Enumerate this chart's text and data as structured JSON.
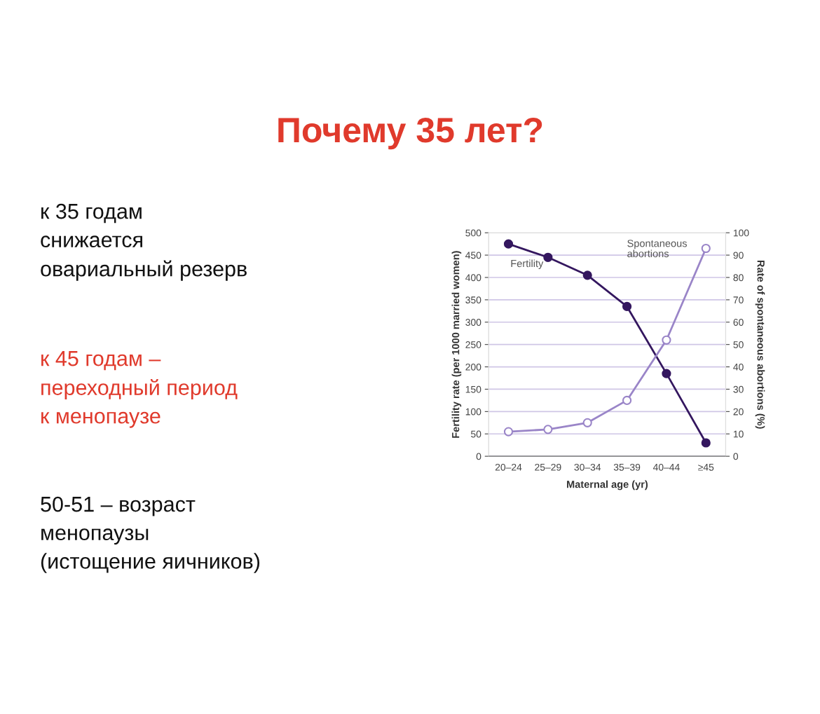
{
  "chart_data": {
    "type": "line",
    "title": "Почему 35 лет?",
    "categories": [
      "20–24",
      "25–29",
      "30–34",
      "35–39",
      "40–44",
      "≥45"
    ],
    "series": [
      {
        "name": "Fertility",
        "color": "#34175f",
        "values": [
          475,
          445,
          405,
          335,
          185,
          30
        ]
      },
      {
        "name": "Spontaneous abortions",
        "color": "#9a85c8",
        "axis": "y2",
        "values": [
          11,
          12,
          15,
          25,
          52,
          93
        ]
      }
    ],
    "xlabel": "Maternal age (yr)",
    "ylabel": "Fertility rate (per 1000 married women)",
    "y2label": "Rate of spontaneous abortions (%)",
    "ylim": [
      0,
      500
    ],
    "yticks": [
      0,
      50,
      100,
      150,
      200,
      250,
      300,
      350,
      400,
      450,
      500
    ],
    "y2lim": [
      0,
      100
    ],
    "y2ticks": [
      0,
      10,
      20,
      30,
      40,
      50,
      60,
      70,
      80,
      90,
      100
    ],
    "grid": "y",
    "marker": "circle",
    "line_style": "solid",
    "legend": false,
    "annotations": [
      "к 35 годам\nснижается\nовариальный резерв",
      "к 45 годам –\nпереходный период\nк менопаузе",
      "50-51 – возраст\nменопаузы\n(истощение яичников)"
    ]
  }
}
